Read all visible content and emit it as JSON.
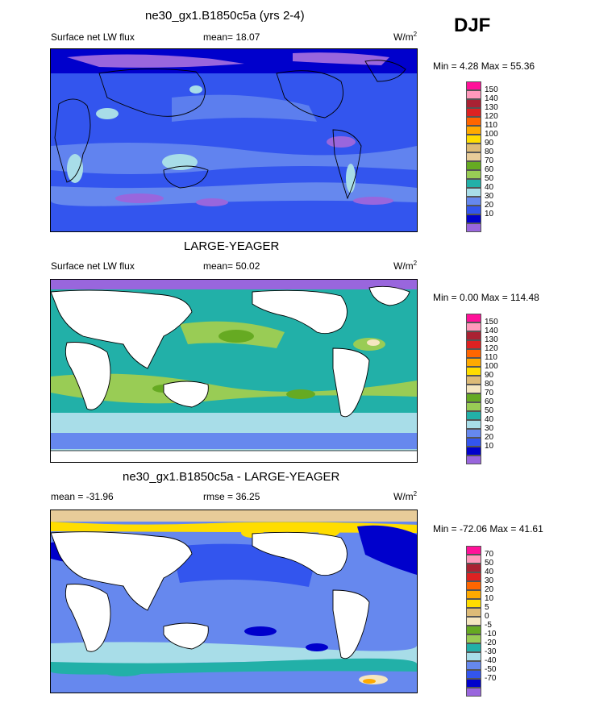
{
  "season": "DJF",
  "panels": [
    {
      "id": "model",
      "title": "ne30_gx1.B1850c5a (yrs 2-4)",
      "left_label": "Surface net LW flux",
      "center_label": "mean=  18.07",
      "units": "W/m",
      "units_sup": "2",
      "minmax": "Min =   4.28 Max =  55.36",
      "legend": {
        "colors": [
          "#9966dd",
          "#0000cc",
          "#3355ee",
          "#6688ee",
          "#a8dde8",
          "#22b0a8",
          "#99cc55",
          "#66aa22",
          "#e8cc99",
          "#ddbb77",
          "#ffdd00",
          "#ffaa00",
          "#ff6600",
          "#dd2222",
          "#aa2233",
          "#ff99bb",
          "#ff1199"
        ],
        "labels": [
          "10",
          "20",
          "30",
          "40",
          "50",
          "60",
          "70",
          "80",
          "90",
          "100",
          "110",
          "120",
          "130",
          "140",
          "150"
        ]
      }
    },
    {
      "id": "obs",
      "title": "LARGE-YEAGER",
      "left_label": "Surface net LW flux",
      "center_label": "mean=  50.02",
      "units": "W/m",
      "units_sup": "2",
      "minmax": "Min =   0.00 Max = 114.48",
      "legend": {
        "colors": [
          "#9966dd",
          "#0000cc",
          "#3355ee",
          "#6688ee",
          "#a8dde8",
          "#22b0a8",
          "#99cc55",
          "#66aa22",
          "#f5e6c0",
          "#ddbb77",
          "#ffdd00",
          "#ffaa00",
          "#ff6600",
          "#dd2222",
          "#aa2233",
          "#ff99bb",
          "#ff1199"
        ],
        "labels": [
          "10",
          "20",
          "30",
          "40",
          "50",
          "60",
          "70",
          "80",
          "90",
          "100",
          "110",
          "120",
          "130",
          "140",
          "150"
        ]
      }
    },
    {
      "id": "diff",
      "title": "ne30_gx1.B1850c5a - LARGE-YEAGER",
      "left_label": "mean = -31.96",
      "center_label": "rmse =  36.25",
      "units": "W/m",
      "units_sup": "2",
      "minmax": "Min = -72.06 Max =  41.61",
      "legend": {
        "colors": [
          "#9966dd",
          "#0000cc",
          "#3355ee",
          "#6688ee",
          "#a8dde8",
          "#22b0a8",
          "#99cc55",
          "#66aa22",
          "#f5e6c0",
          "#ddbb77",
          "#ffdd00",
          "#ffaa00",
          "#ff6600",
          "#dd2222",
          "#aa2233",
          "#ff99bb",
          "#ff1199"
        ],
        "labels": [
          "-70",
          "-50",
          "-40",
          "-30",
          "-20",
          "-10",
          "-5",
          "0",
          "5",
          "10",
          "20",
          "30",
          "40",
          "50",
          "70"
        ]
      }
    }
  ],
  "colors": {
    "ocean_low": "#0000cc",
    "land_mask": "#ffffff"
  }
}
